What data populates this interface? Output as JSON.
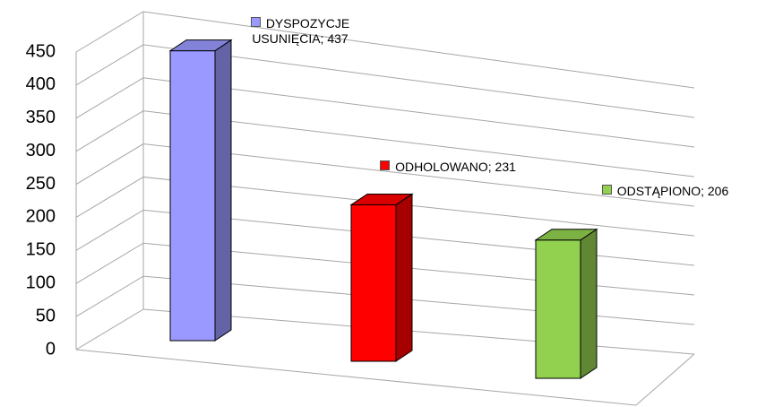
{
  "chart_data": {
    "type": "bar3d",
    "categories": [
      "DYSPOZYCJE USUNIĘCIA",
      "ODHOLOWANO",
      "ODSTĄPIONO"
    ],
    "values": [
      437,
      231,
      206
    ],
    "value_labels": [
      "DYSPOZYCJE USUNIĘCIA; 437",
      "ODHOLOWANO; 231",
      "ODSTĄPIONO; 206"
    ],
    "colors": [
      "#9999ff",
      "#ff0000",
      "#92d050"
    ],
    "ylim": [
      0,
      450
    ],
    "yticks": [
      0,
      50,
      100,
      150,
      200,
      250,
      300,
      350,
      400,
      450
    ],
    "grid": true
  }
}
